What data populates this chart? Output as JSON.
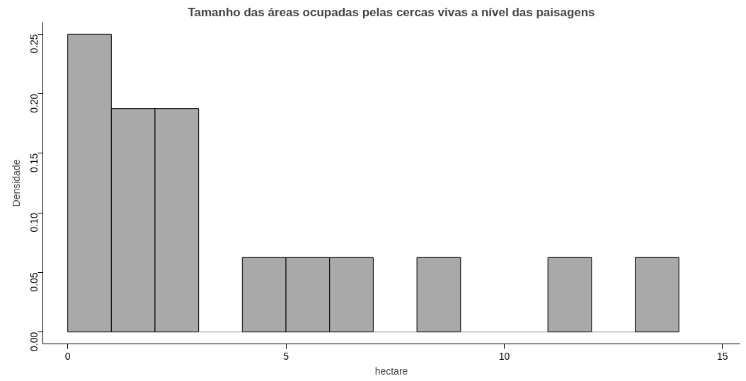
{
  "chart_data": {
    "type": "histogram",
    "title": "Tamanho das áreas ocupadas pelas cercas vivas a nível das paisagens",
    "xlabel": "hectare",
    "ylabel": "Densidade",
    "bins": [
      0,
      1,
      2,
      3,
      4,
      5,
      6,
      7,
      8,
      9,
      10,
      11,
      12,
      13,
      14
    ],
    "values": [
      0.25,
      0.1875,
      0.1875,
      0,
      0.0625,
      0.0625,
      0.0625,
      0,
      0.0625,
      0,
      0,
      0.0625,
      0,
      0.0625
    ],
    "color": "#a9a9a9",
    "xlim": [
      -0.57,
      15.4
    ],
    "ylim": [
      -0.01,
      0.26
    ],
    "xticks": [
      0,
      5,
      10,
      15
    ],
    "yticks": [
      {
        "value": 0,
        "label": "0.00"
      },
      {
        "value": 0.05,
        "label": "0.05"
      },
      {
        "value": 0.1,
        "label": "0.10"
      },
      {
        "value": 0.15,
        "label": "0.15"
      },
      {
        "value": 0.2,
        "label": "0.20"
      },
      {
        "value": 0.25,
        "label": "0.25"
      }
    ],
    "grid": false
  }
}
